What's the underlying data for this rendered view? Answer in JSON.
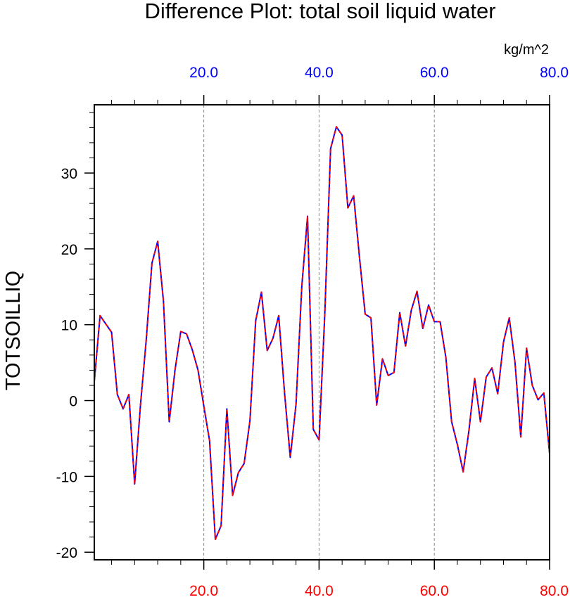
{
  "chart_data": {
    "type": "line",
    "title": "Difference Plot: total soil liquid water",
    "units": "kg/m^2",
    "ylabel": "TOTSOILLIQ",
    "xlim": [
      1,
      80
    ],
    "ylim": [
      -21,
      39
    ],
    "y_ticks": [
      30,
      20,
      10,
      0,
      -10,
      -20
    ],
    "y_tick_labels": [
      "30",
      "20",
      "10",
      "0",
      "-10",
      "-20"
    ],
    "y_minor_step": 2,
    "x_ticks": [
      20,
      40,
      60,
      80
    ],
    "x_tick_labels_bottom": [
      "20.0",
      "40.0",
      "60.0",
      "80.0"
    ],
    "x_tick_labels_top": [
      "20.0",
      "40.0",
      "60.0",
      "80.0"
    ],
    "x_minor_step": 4,
    "vertical_gridlines": [
      20,
      40,
      60
    ],
    "colors": {
      "bottom_axis_labels": "#ff0000",
      "top_axis_labels": "#0000ff",
      "series_solid": "#0000ff",
      "series_dashed": "#ff0000",
      "gridlines": "#888888"
    },
    "x": [
      1,
      2,
      3,
      4,
      5,
      6,
      7,
      8,
      9,
      10,
      11,
      12,
      13,
      14,
      15,
      16,
      17,
      18,
      19,
      20,
      21,
      22,
      23,
      24,
      25,
      26,
      27,
      28,
      29,
      30,
      31,
      32,
      33,
      34,
      35,
      36,
      37,
      38,
      39,
      40,
      41,
      42,
      43,
      44,
      45,
      46,
      47,
      48,
      49,
      50,
      51,
      52,
      53,
      54,
      55,
      56,
      57,
      58,
      59,
      60,
      61,
      62,
      63,
      64,
      65,
      66,
      67,
      68,
      69,
      70,
      71,
      72,
      73,
      74,
      75,
      76,
      77,
      78,
      79,
      80
    ],
    "series": [
      {
        "style": "solid",
        "values": [
          2.5,
          11.2,
          10.1,
          9.0,
          0.8,
          -1.1,
          0.8,
          -11.0,
          -0.7,
          7.9,
          18.1,
          21.0,
          13.1,
          -2.8,
          4.0,
          9.1,
          8.8,
          6.7,
          4.0,
          -0.7,
          -5.3,
          -18.3,
          -16.5,
          -1.1,
          -12.5,
          -9.5,
          -8.3,
          -2.7,
          10.5,
          14.3,
          6.6,
          8.2,
          11.2,
          1.1,
          -7.5,
          -0.5,
          15.0,
          24.3,
          -3.8,
          -5.2,
          11.5,
          33.2,
          36.1,
          35.0,
          25.4,
          27.0,
          19.0,
          11.4,
          10.9,
          -0.6,
          5.5,
          3.3,
          3.7,
          11.6,
          7.2,
          11.9,
          14.4,
          9.5,
          12.6,
          10.4,
          10.4,
          5.7,
          -2.8,
          -5.8,
          -9.4,
          -4.0,
          2.9,
          -2.8,
          3.1,
          4.3,
          0.9,
          7.7,
          10.9,
          5.0,
          -4.8,
          6.9,
          2.0,
          0.1,
          1.0,
          -7.0
        ]
      },
      {
        "style": "dashed",
        "values": [
          2.5,
          11.2,
          10.1,
          9.0,
          0.8,
          -1.1,
          0.8,
          -11.0,
          -0.7,
          7.9,
          18.1,
          21.0,
          13.1,
          -2.8,
          4.0,
          9.1,
          8.8,
          6.7,
          4.0,
          -0.7,
          -5.3,
          -18.3,
          -16.5,
          -1.1,
          -12.5,
          -9.5,
          -8.3,
          -2.7,
          10.5,
          14.3,
          6.6,
          8.2,
          11.2,
          1.1,
          -7.5,
          -0.5,
          15.0,
          24.3,
          -3.8,
          -5.2,
          11.5,
          33.2,
          36.1,
          35.0,
          25.4,
          27.0,
          19.0,
          11.4,
          10.9,
          -0.6,
          5.5,
          3.3,
          3.7,
          11.6,
          7.2,
          11.9,
          14.4,
          9.5,
          12.6,
          10.4,
          10.4,
          5.7,
          -2.8,
          -5.8,
          -9.4,
          -4.0,
          2.9,
          -2.8,
          3.1,
          4.3,
          0.9,
          7.7,
          10.9,
          5.0,
          -4.8,
          6.9,
          2.0,
          0.1,
          1.0,
          -7.0
        ]
      }
    ]
  }
}
